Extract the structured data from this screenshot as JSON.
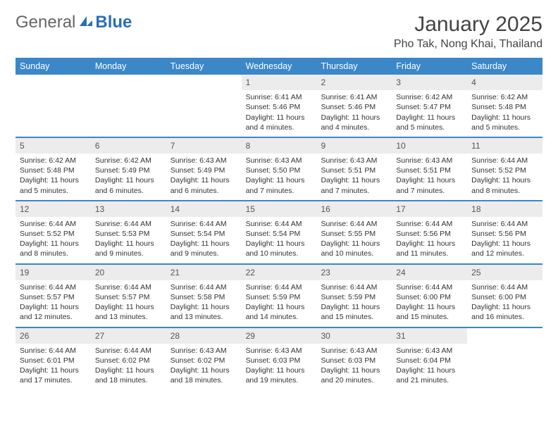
{
  "brand": {
    "part1": "General",
    "part2": "Blue"
  },
  "title": "January 2025",
  "location": "Pho Tak, Nong Khai, Thailand",
  "colors": {
    "header_bg": "#3b87c8",
    "header_text": "#ffffff",
    "daynum_bg": "#ececec",
    "text": "#333333",
    "rule": "#3b87c8",
    "page_bg": "#ffffff"
  },
  "daynames": [
    "Sunday",
    "Monday",
    "Tuesday",
    "Wednesday",
    "Thursday",
    "Friday",
    "Saturday"
  ],
  "weeks": [
    [
      null,
      null,
      null,
      {
        "n": "1",
        "sr": "6:41 AM",
        "ss": "5:46 PM",
        "dl1": "11 hours",
        "dl2": "and 4 minutes."
      },
      {
        "n": "2",
        "sr": "6:41 AM",
        "ss": "5:46 PM",
        "dl1": "11 hours",
        "dl2": "and 4 minutes."
      },
      {
        "n": "3",
        "sr": "6:42 AM",
        "ss": "5:47 PM",
        "dl1": "11 hours",
        "dl2": "and 5 minutes."
      },
      {
        "n": "4",
        "sr": "6:42 AM",
        "ss": "5:48 PM",
        "dl1": "11 hours",
        "dl2": "and 5 minutes."
      }
    ],
    [
      {
        "n": "5",
        "sr": "6:42 AM",
        "ss": "5:48 PM",
        "dl1": "11 hours",
        "dl2": "and 5 minutes."
      },
      {
        "n": "6",
        "sr": "6:42 AM",
        "ss": "5:49 PM",
        "dl1": "11 hours",
        "dl2": "and 6 minutes."
      },
      {
        "n": "7",
        "sr": "6:43 AM",
        "ss": "5:49 PM",
        "dl1": "11 hours",
        "dl2": "and 6 minutes."
      },
      {
        "n": "8",
        "sr": "6:43 AM",
        "ss": "5:50 PM",
        "dl1": "11 hours",
        "dl2": "and 7 minutes."
      },
      {
        "n": "9",
        "sr": "6:43 AM",
        "ss": "5:51 PM",
        "dl1": "11 hours",
        "dl2": "and 7 minutes."
      },
      {
        "n": "10",
        "sr": "6:43 AM",
        "ss": "5:51 PM",
        "dl1": "11 hours",
        "dl2": "and 7 minutes."
      },
      {
        "n": "11",
        "sr": "6:44 AM",
        "ss": "5:52 PM",
        "dl1": "11 hours",
        "dl2": "and 8 minutes."
      }
    ],
    [
      {
        "n": "12",
        "sr": "6:44 AM",
        "ss": "5:52 PM",
        "dl1": "11 hours",
        "dl2": "and 8 minutes."
      },
      {
        "n": "13",
        "sr": "6:44 AM",
        "ss": "5:53 PM",
        "dl1": "11 hours",
        "dl2": "and 9 minutes."
      },
      {
        "n": "14",
        "sr": "6:44 AM",
        "ss": "5:54 PM",
        "dl1": "11 hours",
        "dl2": "and 9 minutes."
      },
      {
        "n": "15",
        "sr": "6:44 AM",
        "ss": "5:54 PM",
        "dl1": "11 hours",
        "dl2": "and 10 minutes."
      },
      {
        "n": "16",
        "sr": "6:44 AM",
        "ss": "5:55 PM",
        "dl1": "11 hours",
        "dl2": "and 10 minutes."
      },
      {
        "n": "17",
        "sr": "6:44 AM",
        "ss": "5:56 PM",
        "dl1": "11 hours",
        "dl2": "and 11 minutes."
      },
      {
        "n": "18",
        "sr": "6:44 AM",
        "ss": "5:56 PM",
        "dl1": "11 hours",
        "dl2": "and 12 minutes."
      }
    ],
    [
      {
        "n": "19",
        "sr": "6:44 AM",
        "ss": "5:57 PM",
        "dl1": "11 hours",
        "dl2": "and 12 minutes."
      },
      {
        "n": "20",
        "sr": "6:44 AM",
        "ss": "5:57 PM",
        "dl1": "11 hours",
        "dl2": "and 13 minutes."
      },
      {
        "n": "21",
        "sr": "6:44 AM",
        "ss": "5:58 PM",
        "dl1": "11 hours",
        "dl2": "and 13 minutes."
      },
      {
        "n": "22",
        "sr": "6:44 AM",
        "ss": "5:59 PM",
        "dl1": "11 hours",
        "dl2": "and 14 minutes."
      },
      {
        "n": "23",
        "sr": "6:44 AM",
        "ss": "5:59 PM",
        "dl1": "11 hours",
        "dl2": "and 15 minutes."
      },
      {
        "n": "24",
        "sr": "6:44 AM",
        "ss": "6:00 PM",
        "dl1": "11 hours",
        "dl2": "and 15 minutes."
      },
      {
        "n": "25",
        "sr": "6:44 AM",
        "ss": "6:00 PM",
        "dl1": "11 hours",
        "dl2": "and 16 minutes."
      }
    ],
    [
      {
        "n": "26",
        "sr": "6:44 AM",
        "ss": "6:01 PM",
        "dl1": "11 hours",
        "dl2": "and 17 minutes."
      },
      {
        "n": "27",
        "sr": "6:44 AM",
        "ss": "6:02 PM",
        "dl1": "11 hours",
        "dl2": "and 18 minutes."
      },
      {
        "n": "28",
        "sr": "6:43 AM",
        "ss": "6:02 PM",
        "dl1": "11 hours",
        "dl2": "and 18 minutes."
      },
      {
        "n": "29",
        "sr": "6:43 AM",
        "ss": "6:03 PM",
        "dl1": "11 hours",
        "dl2": "and 19 minutes."
      },
      {
        "n": "30",
        "sr": "6:43 AM",
        "ss": "6:03 PM",
        "dl1": "11 hours",
        "dl2": "and 20 minutes."
      },
      {
        "n": "31",
        "sr": "6:43 AM",
        "ss": "6:04 PM",
        "dl1": "11 hours",
        "dl2": "and 21 minutes."
      },
      null
    ]
  ],
  "labels": {
    "sunrise": "Sunrise:",
    "sunset": "Sunset:",
    "daylight": "Daylight:"
  }
}
